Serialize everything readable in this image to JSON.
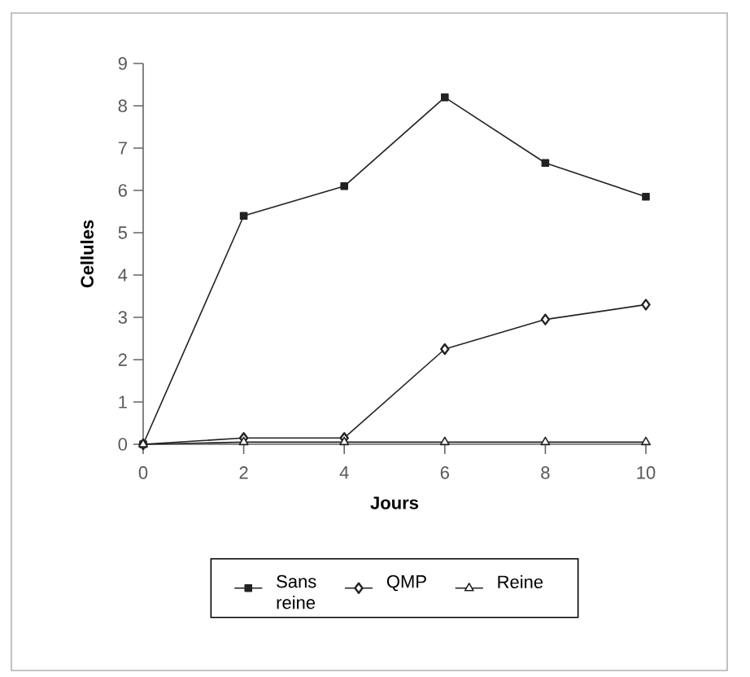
{
  "chart_data": {
    "type": "line",
    "xlabel": "Jours",
    "ylabel": "Cellules",
    "x": [
      0,
      2,
      4,
      6,
      8,
      10
    ],
    "series": [
      {
        "name": "Sans reine",
        "color": "#222222",
        "marker": "square",
        "values": [
          0,
          5.4,
          6.1,
          8.2,
          6.65,
          5.85
        ]
      },
      {
        "name": "QMP",
        "color": "#222222",
        "marker": "diamond",
        "values": [
          0,
          0.15,
          0.15,
          2.25,
          2.95,
          3.3
        ]
      },
      {
        "name": "Reine",
        "color": "#222222",
        "marker": "triangle",
        "values": [
          0,
          0.05,
          0.05,
          0.05,
          0.05,
          0.05
        ]
      }
    ],
    "xlim": [
      0,
      10
    ],
    "ylim": [
      0,
      9
    ],
    "xticks": [
      0,
      2,
      4,
      6,
      8,
      10
    ],
    "yticks": [
      0,
      1,
      2,
      3,
      4,
      5,
      6,
      7,
      8,
      9
    ],
    "grid": false,
    "legend": "bottom",
    "line_style": "solid"
  }
}
